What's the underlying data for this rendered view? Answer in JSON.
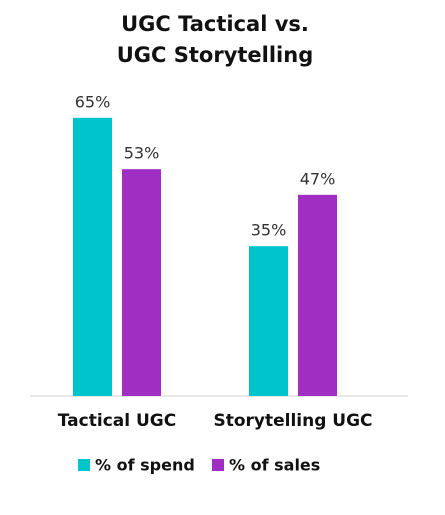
{
  "chart_data": {
    "type": "bar",
    "title": [
      "UGC Tactical vs.",
      "UGC Storytelling"
    ],
    "categories": [
      "Tactical UGC",
      "Storytelling UGC"
    ],
    "series": [
      {
        "name": "% of spend",
        "color": "#00c4cc",
        "values": [
          65,
          35
        ],
        "value_labels": [
          "65%",
          "35%"
        ]
      },
      {
        "name": "% of sales",
        "color": "#a12ec2",
        "values": [
          53,
          47
        ],
        "value_labels": [
          "53%",
          "47%"
        ]
      }
    ],
    "legend": "bottom"
  }
}
